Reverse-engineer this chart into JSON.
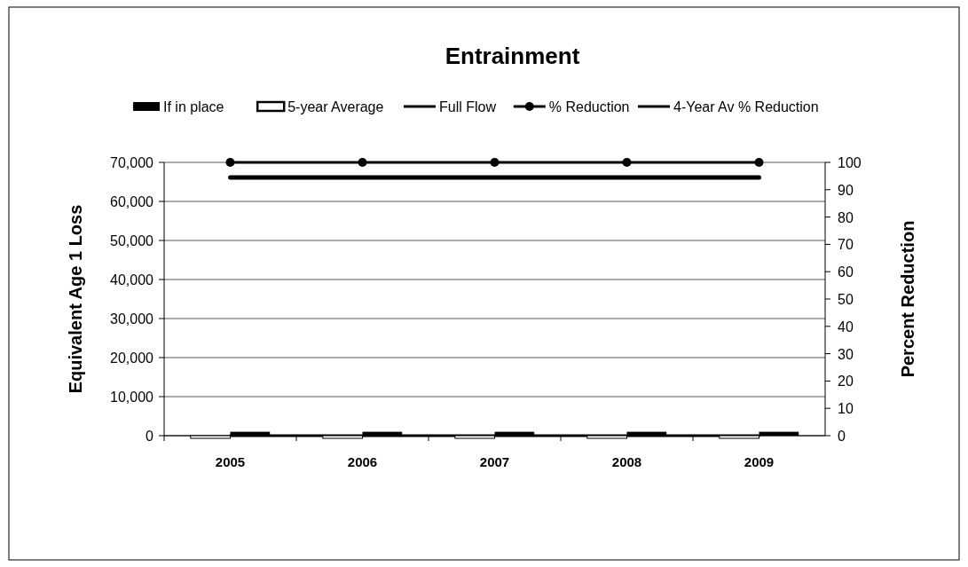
{
  "chart_data": {
    "type": "bar",
    "title": "Entrainment",
    "ylabel": "Equivalent Age 1 Loss",
    "y2label": "Percent Reduction",
    "categories": [
      "2005",
      "2006",
      "2007",
      "2008",
      "2009"
    ],
    "series": [
      {
        "name": "If in place",
        "color": "#000000",
        "values": [
          1000,
          1000,
          1000,
          1000,
          1000
        ]
      },
      {
        "name": "5-year Average",
        "color": "#ffffff",
        "values": [
          0,
          0,
          0,
          0,
          0
        ]
      },
      {
        "name": "Full Flow",
        "type": "line",
        "color": "#000000",
        "values": [
          0,
          0,
          0,
          0,
          0
        ]
      },
      {
        "name": "% Reduction",
        "type": "line",
        "axis": "y2",
        "marker": "circle",
        "color": "#000000",
        "values": [
          100,
          100,
          100,
          100,
          100
        ]
      },
      {
        "name": "4-Year Av % Reduction",
        "type": "line",
        "axis": "y2",
        "color": "#000000",
        "values": [
          94.5,
          94.5,
          94.5,
          94.5,
          94.5
        ]
      }
    ],
    "ylim": [
      0,
      70000
    ],
    "yticks": [
      {
        "value": 0,
        "label": "0"
      },
      {
        "value": 10000,
        "label": "10,000"
      },
      {
        "value": 20000,
        "label": "20,000"
      },
      {
        "value": 30000,
        "label": "30,000"
      },
      {
        "value": 40000,
        "label": "40,000"
      },
      {
        "value": 50000,
        "label": "50,000"
      },
      {
        "value": 60000,
        "label": "60,000"
      },
      {
        "value": 70000,
        "label": "70,000"
      }
    ],
    "y2lim": [
      0,
      100
    ],
    "y2ticks": [
      0,
      10,
      20,
      30,
      40,
      50,
      60,
      70,
      80,
      90,
      100
    ],
    "grid": "y",
    "legend": "top"
  }
}
